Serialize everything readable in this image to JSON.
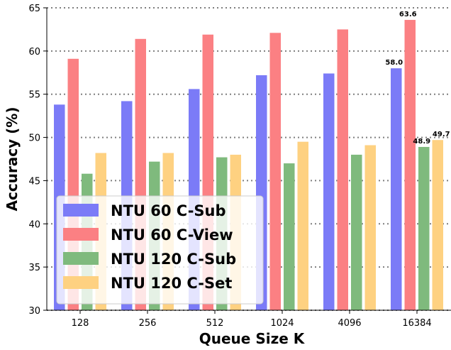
{
  "chart_data": {
    "type": "bar",
    "title": "",
    "xlabel": "Queue Size K",
    "ylabel": "Accuracy (%)",
    "ylim": [
      30,
      65
    ],
    "yticks": [
      "30",
      "35",
      "40",
      "45",
      "50",
      "55",
      "60",
      "65"
    ],
    "categories": [
      "128",
      "256",
      "512",
      "1024",
      "4096",
      "16384"
    ],
    "grid": "horizontal dotted",
    "legend_position": "lower-left",
    "series": [
      {
        "name": "NTU 60 C-Sub",
        "color": "#7b7bf7",
        "values": [
          53.8,
          54.2,
          55.6,
          57.2,
          57.4,
          58.0
        ]
      },
      {
        "name": "NTU 60 C-View",
        "color": "#fb8083",
        "values": [
          59.1,
          61.4,
          61.9,
          62.1,
          62.5,
          63.6
        ]
      },
      {
        "name": "NTU 120 C-Sub",
        "color": "#7fba7d",
        "values": [
          45.8,
          47.2,
          47.7,
          47.0,
          48.0,
          48.9
        ]
      },
      {
        "name": "NTU 120 C-Set",
        "color": "#fed181",
        "values": [
          48.2,
          48.2,
          48.0,
          49.5,
          49.1,
          49.7
        ]
      }
    ],
    "annotations": [
      {
        "series": 0,
        "category": 5,
        "text": "58.0"
      },
      {
        "series": 1,
        "category": 5,
        "text": "63.6"
      },
      {
        "series": 2,
        "category": 5,
        "text": "48.9"
      },
      {
        "series": 3,
        "category": 5,
        "text": "49.7"
      }
    ]
  }
}
